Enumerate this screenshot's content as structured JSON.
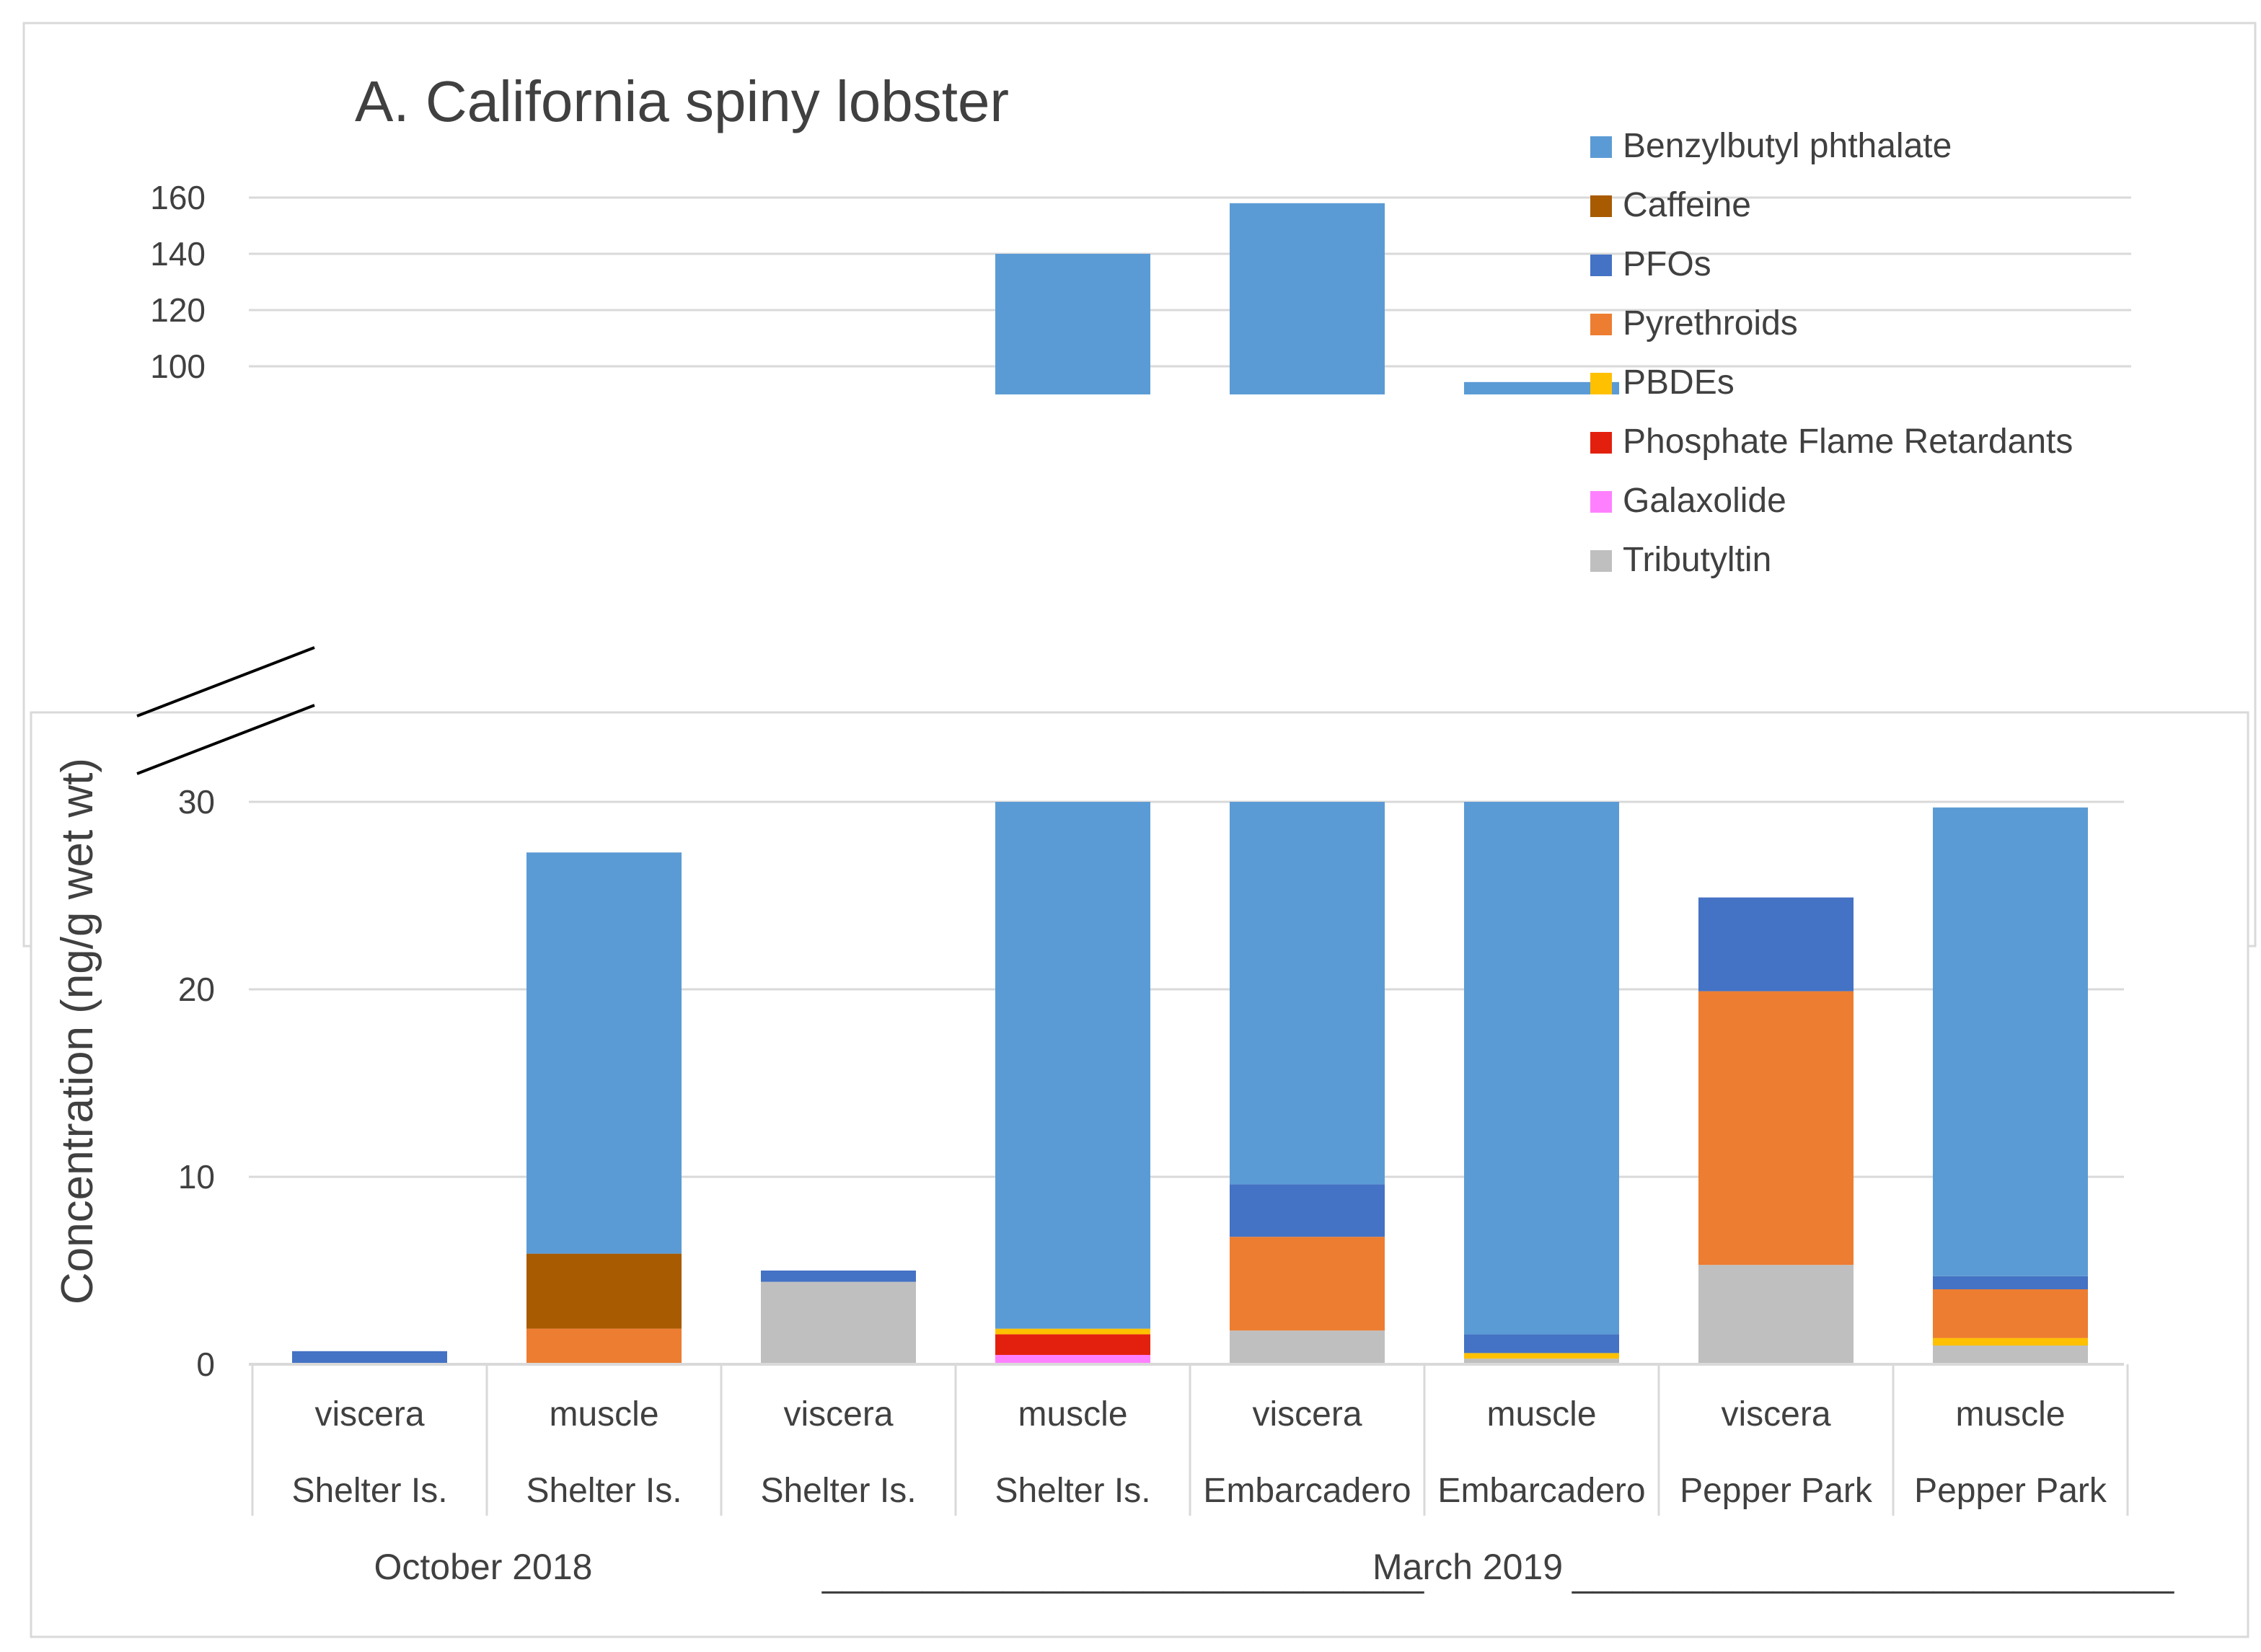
{
  "chart_data": {
    "type": "bar",
    "stacked": true,
    "title": "A. California spiny lobster",
    "ylabel": "Concentration (ng/g wet wt)",
    "xlabel": "",
    "axis_break": true,
    "upper_panel": {
      "ylim": [
        90,
        160
      ],
      "yticks": [
        100,
        120,
        140,
        160
      ]
    },
    "lower_panel": {
      "ylim": [
        0,
        30
      ],
      "yticks": [
        0,
        10,
        20,
        30
      ]
    },
    "categories": [
      {
        "tissue": "viscera",
        "site": "Shelter Is."
      },
      {
        "tissue": "muscle",
        "site": "Shelter Is."
      },
      {
        "tissue": "viscera",
        "site": "Shelter Is."
      },
      {
        "tissue": "muscle",
        "site": "Shelter Is."
      },
      {
        "tissue": "viscera",
        "site": "Embarcadero"
      },
      {
        "tissue": "muscle",
        "site": "Embarcadero"
      },
      {
        "tissue": "viscera",
        "site": "Pepper Park"
      },
      {
        "tissue": "muscle",
        "site": "Pepper Park"
      }
    ],
    "groups": [
      {
        "label": "October 2018",
        "dashes_left": "",
        "dashes_right": ""
      },
      {
        "label": "March 2019",
        "dashes_left": "______________________________",
        "dashes_right": "______________________________"
      }
    ],
    "legend_position": "top-right",
    "series": [
      {
        "name": "Tributyltin",
        "color": "#BFBFBF",
        "values": [
          0,
          0,
          4.4,
          0,
          1.8,
          0.3,
          5.3,
          1.0
        ]
      },
      {
        "name": "Galaxolide",
        "color": "#FF80FF",
        "values": [
          0,
          0,
          0,
          0.5,
          0,
          0,
          0,
          0
        ]
      },
      {
        "name": "Phosphate Flame Retardants",
        "color": "#E3200E",
        "values": [
          0,
          0,
          0,
          1.1,
          0,
          0,
          0,
          0
        ]
      },
      {
        "name": "PBDEs",
        "color": "#FFC000",
        "values": [
          0,
          0,
          0,
          0.3,
          0,
          0.3,
          0,
          0.4
        ]
      },
      {
        "name": "Pyrethroids",
        "color": "#ED7D31",
        "values": [
          0,
          1.9,
          0,
          0,
          5.0,
          0,
          14.6,
          2.6
        ]
      },
      {
        "name": "PFOs",
        "color": "#4472C4",
        "values": [
          0.7,
          0,
          0.6,
          0,
          2.8,
          1.0,
          5.0,
          0.7
        ]
      },
      {
        "name": "Caffeine",
        "color": "#A85B00",
        "values": [
          0,
          4.0,
          0,
          0,
          0,
          0,
          0,
          0
        ]
      },
      {
        "name": "Benzylbutyl phthalate",
        "color": "#5B9BD5",
        "values": [
          0,
          21.4,
          0,
          138.1,
          148.4,
          92.8,
          0,
          25.0
        ]
      }
    ],
    "legend_order": [
      "Benzylbutyl phthalate",
      "Caffeine",
      "PFOs",
      "Pyrethroids",
      "PBDEs",
      "Phosphate Flame Retardants",
      "Galaxolide",
      "Tributyltin"
    ]
  }
}
